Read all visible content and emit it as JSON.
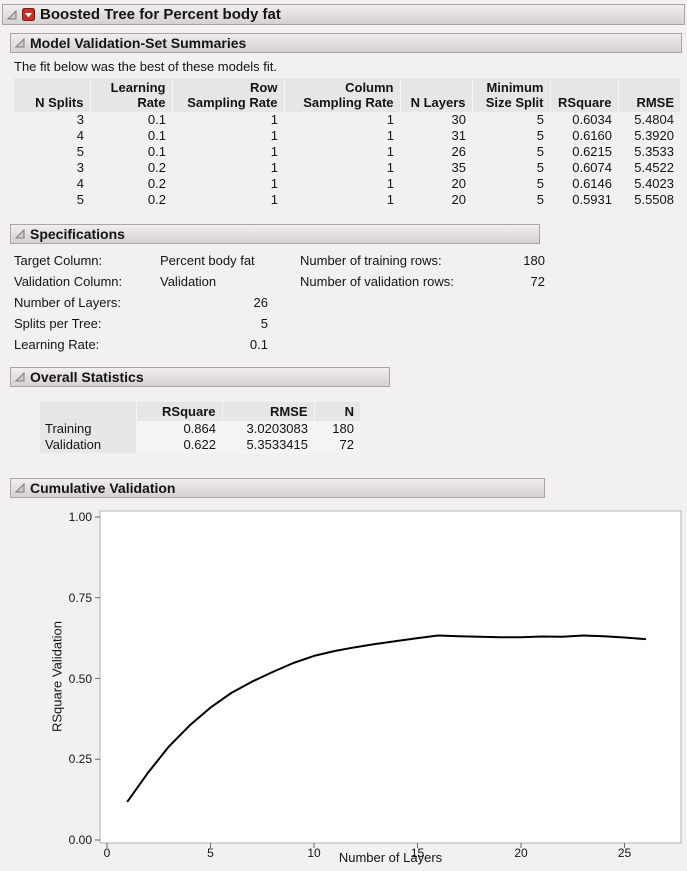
{
  "window": {
    "title": "Boosted Tree for Percent body fat"
  },
  "sections": {
    "summaries": {
      "title": "Model Validation-Set Summaries",
      "note": "The fit below was the best of these models fit.",
      "table": {
        "headers": [
          {
            "l1": "",
            "l2": "N Splits"
          },
          {
            "l1": "Learning",
            "l2": "Rate"
          },
          {
            "l1": "Row",
            "l2": "Sampling Rate"
          },
          {
            "l1": "Column",
            "l2": "Sampling Rate"
          },
          {
            "l1": "",
            "l2": "N Layers"
          },
          {
            "l1": "Minimum",
            "l2": "Size Split"
          },
          {
            "l1": "",
            "l2": "RSquare"
          },
          {
            "l1": "",
            "l2": "RMSE"
          }
        ],
        "rows": [
          [
            "3",
            "0.1",
            "1",
            "1",
            "30",
            "5",
            "0.6034",
            "5.4804"
          ],
          [
            "4",
            "0.1",
            "1",
            "1",
            "31",
            "5",
            "0.6160",
            "5.3920"
          ],
          [
            "5",
            "0.1",
            "1",
            "1",
            "26",
            "5",
            "0.6215",
            "5.3533"
          ],
          [
            "3",
            "0.2",
            "1",
            "1",
            "35",
            "5",
            "0.6074",
            "5.4522"
          ],
          [
            "4",
            "0.2",
            "1",
            "1",
            "20",
            "5",
            "0.6146",
            "5.4023"
          ],
          [
            "5",
            "0.2",
            "1",
            "1",
            "20",
            "5",
            "0.5931",
            "5.5508"
          ]
        ]
      }
    },
    "specifications": {
      "title": "Specifications",
      "left": [
        {
          "label": "Target Column:",
          "value": "Percent body fat"
        },
        {
          "label": "Validation Column:",
          "value": "Validation"
        },
        {
          "label": "Number of Layers:",
          "value": "26"
        },
        {
          "label": "Splits per Tree:",
          "value": "5"
        },
        {
          "label": "Learning Rate:",
          "value": "0.1"
        }
      ],
      "right": [
        {
          "label": "Number of training rows:",
          "value": "180"
        },
        {
          "label": "Number of validation rows:",
          "value": "72"
        }
      ]
    },
    "overall": {
      "title": "Overall Statistics",
      "table": {
        "headers": [
          "",
          "RSquare",
          "RMSE",
          "N"
        ],
        "rows": [
          [
            "Training",
            "0.864",
            "3.0203083",
            "180"
          ],
          [
            "Validation",
            "0.622",
            "5.3533415",
            "72"
          ]
        ]
      }
    },
    "cumulative": {
      "title": "Cumulative Validation"
    }
  },
  "chart_data": {
    "type": "line",
    "title": "Cumulative Validation",
    "xlabel": "Number of Layers",
    "ylabel": "RSquare Validation",
    "xlim": [
      0,
      27
    ],
    "ylim": [
      0,
      1
    ],
    "xticks": [
      0,
      5,
      10,
      15,
      20,
      25
    ],
    "yticks": [
      "0.00",
      "0.25",
      "0.50",
      "0.75",
      "1.00"
    ],
    "grid": false,
    "legend": "none",
    "line_color": "#000000",
    "series": [
      {
        "name": "RSquare Validation",
        "x": [
          1,
          2,
          3,
          4,
          5,
          6,
          7,
          8,
          9,
          10,
          11,
          12,
          13,
          14,
          15,
          16,
          17,
          18,
          19,
          20,
          21,
          22,
          23,
          24,
          25,
          26
        ],
        "y": [
          0.12,
          0.21,
          0.29,
          0.355,
          0.41,
          0.455,
          0.49,
          0.52,
          0.548,
          0.57,
          0.585,
          0.597,
          0.607,
          0.616,
          0.625,
          0.633,
          0.631,
          0.629,
          0.628,
          0.628,
          0.63,
          0.629,
          0.633,
          0.631,
          0.627,
          0.622
        ]
      }
    ]
  }
}
